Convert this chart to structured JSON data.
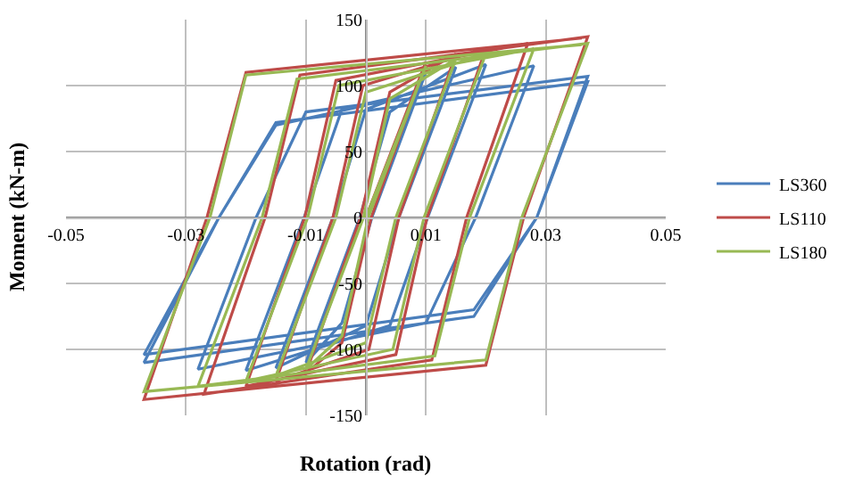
{
  "chart_data": {
    "type": "line",
    "xlabel": "Rotation (rad)",
    "ylabel": "Moment (kN-m)",
    "xlim": [
      -0.05,
      0.05
    ],
    "xticks": [
      -0.05,
      -0.03,
      -0.01,
      0.01,
      0.03,
      0.05
    ],
    "ylim": [
      -150,
      150
    ],
    "yticks": [
      -150,
      -100,
      -50,
      0,
      50,
      100,
      150
    ],
    "grid": true,
    "legend": "right",
    "marker": "none",
    "line_style": "solid",
    "series": [
      {
        "name": "LS360",
        "color": "#4a7ebb",
        "x": [
          0,
          0.01,
          0.001,
          -0.004,
          -0.01,
          -0.001,
          0.004,
          0.015,
          0.0055,
          0,
          -0.015,
          -0.0055,
          0,
          0.02,
          0.0103,
          0.004,
          -0.02,
          -0.0103,
          -0.004,
          0.028,
          0.0183,
          0.01,
          -0.028,
          -0.0183,
          -0.01,
          0.037,
          0.0285,
          0.018,
          -0.037,
          -0.0245,
          -0.015,
          0.037,
          0.0285,
          0.018,
          -0.037,
          -0.0245,
          -0.015,
          0.0
        ],
        "values": [
          0,
          110,
          0,
          -80,
          -110,
          0,
          80,
          114,
          0,
          -82,
          -114,
          0,
          82,
          116,
          0,
          -82,
          -116,
          0,
          82,
          115,
          0,
          -80,
          -115,
          0,
          80,
          107,
          0,
          -75,
          -110,
          0,
          72,
          103,
          0,
          -70,
          -104,
          0,
          70,
          85
        ]
      },
      {
        "name": "LS110",
        "color": "#be4b48",
        "x": [
          0,
          0.01,
          0.0009,
          -0.004,
          -0.01,
          -0.0009,
          0.004,
          0.015,
          0.0055,
          0.0005,
          -0.015,
          -0.0055,
          -0.0005,
          0.02,
          0.0102,
          0.005,
          -0.02,
          -0.0102,
          -0.005,
          0.027,
          0.0168,
          0.011,
          -0.027,
          -0.0168,
          -0.011,
          0.037,
          0.0263,
          0.02,
          -0.037,
          -0.0265,
          -0.02,
          0.036
        ],
        "values": [
          0,
          118,
          0,
          -95,
          -118,
          0,
          95,
          124,
          0,
          -100,
          -124,
          0,
          100,
          128,
          0,
          -104,
          -128,
          0,
          104,
          132,
          0,
          -108,
          -134,
          0,
          108,
          137,
          0,
          -112,
          -138,
          0,
          110,
          136
        ]
      },
      {
        "name": "LS180",
        "color": "#98b954",
        "x": [
          0,
          0.01,
          0.0004,
          -0.004,
          -0.01,
          -0.0004,
          0.004,
          0.015,
          0.005,
          0.0,
          -0.015,
          -0.005,
          0,
          0.02,
          0.0097,
          0.0045,
          -0.02,
          -0.0097,
          -0.0045,
          0.028,
          0.0173,
          0.0115,
          -0.028,
          -0.0173,
          -0.0115,
          0.037,
          0.026,
          0.02,
          -0.037,
          -0.026,
          -0.02,
          0.036
        ],
        "values": [
          0,
          115,
          0,
          -90,
          -115,
          0,
          90,
          120,
          0,
          -95,
          -120,
          0,
          95,
          124,
          0,
          -100,
          -124,
          0,
          100,
          128,
          0,
          -105,
          -128,
          0,
          105,
          132,
          0,
          -108,
          -132,
          0,
          108,
          131
        ]
      }
    ]
  }
}
